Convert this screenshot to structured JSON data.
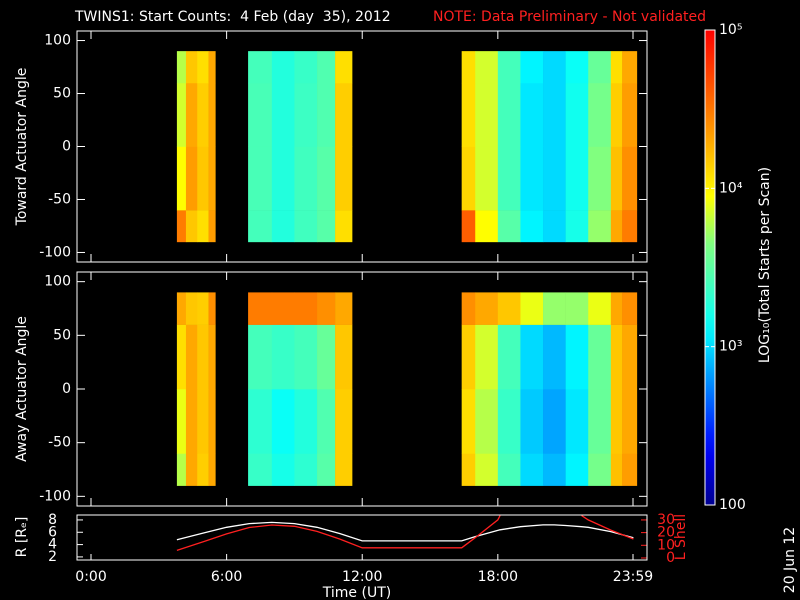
{
  "chart_data": [
    {
      "type": "heatmap",
      "title": "TWINS1: Start Counts:  4 Feb (day  35), 2012",
      "subtitle": "NOTE: Data Preliminary - Not validated",
      "ylabel": "Toward Actuator Angle",
      "xlim": [
        -0.62,
        24.6
      ],
      "ylim": [
        -109,
        109
      ],
      "yticks": [
        100,
        50,
        0,
        -50,
        -100
      ],
      "colormap": "jet",
      "log_color": true,
      "colorbar": {
        "clim": [
          100,
          100000
        ],
        "label": "LOG₁₀(Total Starts per Scan)",
        "ticks": [
          {
            "value": 100000,
            "label": "10⁵"
          },
          {
            "value": 10000,
            "label": "10⁴"
          },
          {
            "value": 1000,
            "label": "10³"
          },
          100
        ]
      },
      "xbins": [
        3.8,
        4.2,
        4.7,
        5.2,
        5.5,
        6.95,
        8,
        9,
        10,
        10.8,
        11.55,
        16.4,
        17,
        18,
        19,
        20,
        21,
        22,
        23,
        23.5,
        24.15
      ],
      "ybins": [
        -90,
        -60,
        0,
        60,
        90
      ],
      "z": [
        [
          30000,
          15000,
          12000,
          22000,
          null,
          2500,
          1800,
          2400,
          3000,
          12000,
          null,
          40000,
          9000,
          3000,
          1200,
          1000,
          1600,
          5000,
          20000,
          30000
        ],
        [
          9000,
          22000,
          15000,
          20000,
          null,
          2600,
          1800,
          2400,
          3000,
          14000,
          null,
          13000,
          7000,
          2500,
          1100,
          1000,
          1500,
          4500,
          16000,
          25000
        ],
        [
          7000,
          20000,
          14000,
          20000,
          null,
          2600,
          1800,
          2300,
          2800,
          14000,
          null,
          12000,
          7000,
          2500,
          1100,
          1000,
          1500,
          4000,
          14000,
          22000
        ],
        [
          6000,
          15000,
          12000,
          20000,
          null,
          2500,
          1800,
          2200,
          2800,
          12000,
          null,
          12000,
          7000,
          2500,
          1200,
          1000,
          1400,
          3500,
          12000,
          20000
        ]
      ]
    },
    {
      "type": "heatmap",
      "ylabel": "Away Actuator Angle",
      "xlim": [
        -0.62,
        24.6
      ],
      "ylim": [
        -109,
        109
      ],
      "yticks": [
        100,
        50,
        0,
        -50,
        -100
      ],
      "colormap": "jet",
      "log_color": true,
      "xbins": [
        3.8,
        4.2,
        4.7,
        5.2,
        5.5,
        6.95,
        8,
        9,
        10,
        10.8,
        11.55,
        16.4,
        17,
        18,
        19,
        20,
        21,
        22,
        23,
        23.5,
        24.15
      ],
      "ybins": [
        -90,
        -60,
        0,
        60,
        90
      ],
      "z": [
        [
          6000,
          20000,
          14000,
          20000,
          null,
          2200,
          1600,
          2000,
          3000,
          14000,
          null,
          14000,
          7000,
          2500,
          1000,
          800,
          1200,
          4000,
          16000,
          22000
        ],
        [
          8000,
          20000,
          15000,
          20000,
          null,
          2000,
          1400,
          1800,
          2800,
          14000,
          null,
          12000,
          6000,
          2200,
          900,
          700,
          1100,
          3500,
          15000,
          20000
        ],
        [
          12000,
          20000,
          15000,
          20000,
          null,
          2500,
          2200,
          2500,
          3500,
          15000,
          null,
          14000,
          7000,
          2500,
          1000,
          800,
          1200,
          3500,
          15000,
          20000
        ],
        [
          20000,
          15000,
          14000,
          25000,
          null,
          30000,
          30000,
          30000,
          25000,
          20000,
          null,
          25000,
          20000,
          15000,
          8000,
          5000,
          5000,
          8000,
          20000,
          25000
        ]
      ]
    },
    {
      "type": "line",
      "ylabel": "R [Rₑ]",
      "y2label": "L Shell",
      "xlabel": "Time (UT)",
      "annotation": "20 Jun 12",
      "xlim": [
        -0.62,
        24.6
      ],
      "ylim": [
        1.5,
        8.8
      ],
      "y2lim": [
        -1.6,
        33.9
      ],
      "xticks": [
        {
          "value": 0,
          "label": "0:00"
        },
        {
          "value": 6,
          "label": "6:00"
        },
        {
          "value": 12,
          "label": "12:00"
        },
        {
          "value": 18,
          "label": "18:00"
        },
        {
          "value": 23.98,
          "label": "23:59"
        }
      ],
      "yticks": [
        2,
        4,
        6,
        8
      ],
      "y2ticks": [
        0,
        10,
        20,
        30
      ],
      "y2color": "#ff2020",
      "x": [
        3.8,
        5,
        6,
        7,
        8,
        9,
        10,
        11,
        12,
        14,
        16.4,
        17,
        18,
        18.1,
        19,
        20,
        20.5,
        21,
        21.7,
        22,
        23,
        24
      ],
      "series": [
        {
          "color": "#ffffff",
          "values": [
            4.8,
            5.9,
            6.8,
            7.4,
            7.6,
            7.4,
            6.8,
            5.8,
            4.6,
            4.6,
            4.6,
            5.3,
            6.3,
            6.4,
            6.9,
            7.2,
            7.2,
            7.1,
            6.9,
            6.8,
            6.1,
            5.1
          ]
        },
        {
          "color": "#ff2020",
          "axis": "y2",
          "values": [
            6,
            13,
            19,
            24,
            26,
            25,
            21,
            15,
            8,
            8,
            8,
            16,
            30,
            33.5,
            null,
            null,
            null,
            null,
            33.5,
            30,
            22,
            15
          ]
        }
      ]
    }
  ]
}
